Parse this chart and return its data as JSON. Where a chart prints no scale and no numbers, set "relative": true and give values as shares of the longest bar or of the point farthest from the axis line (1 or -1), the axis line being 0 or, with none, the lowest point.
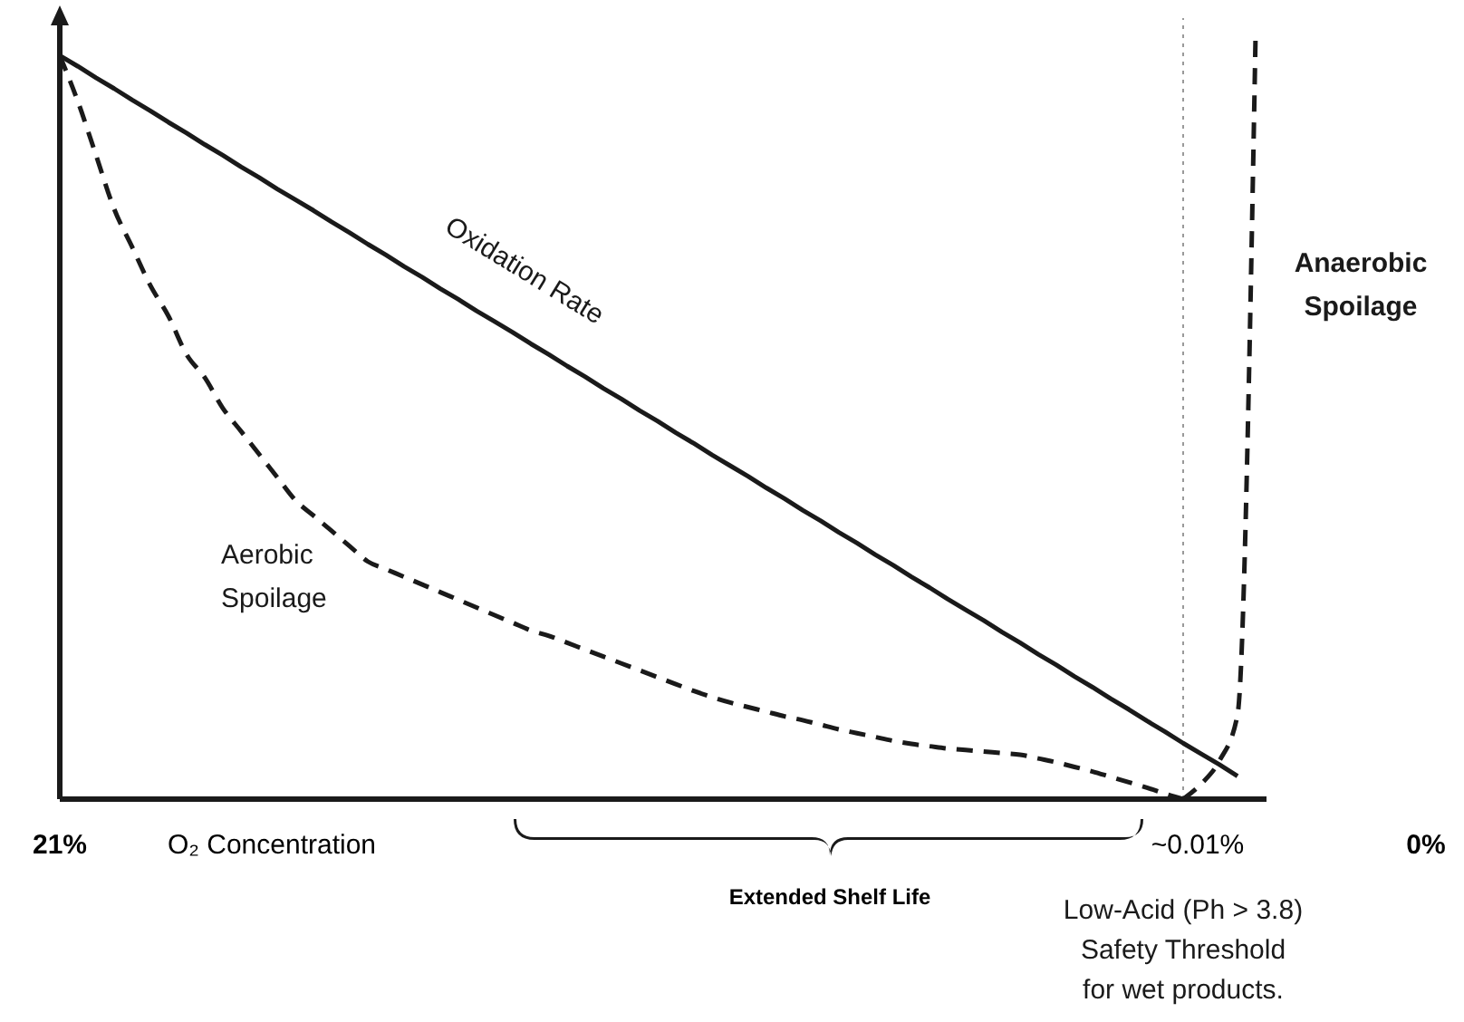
{
  "chart_data": {
    "type": "line",
    "relative": true,
    "xlabel": "O₂ Concentration",
    "categories": [
      null,
      null,
      null,
      null,
      null,
      null,
      null,
      null,
      null,
      null,
      null,
      null,
      null,
      null,
      null,
      null,
      null,
      null,
      null,
      null,
      null,
      null,
      null,
      null,
      null,
      null,
      null,
      null,
      null,
      null,
      null,
      null,
      null,
      null,
      null,
      null,
      null,
      null,
      null,
      null,
      null,
      null,
      null,
      null,
      null,
      null,
      null,
      null,
      null,
      null,
      null,
      null,
      null,
      null,
      null,
      null,
      null,
      null,
      null,
      null,
      null,
      null,
      null,
      null,
      null,
      null,
      null
    ],
    "series": [
      {
        "name": "Oxidation Rate",
        "color": "#1a1a1a",
        "line_style": "solid",
        "values": [
          0.97,
          0.956,
          0.941,
          0.927,
          0.912,
          0.898,
          0.883,
          0.869,
          0.854,
          0.84,
          0.825,
          0.811,
          0.796,
          0.782,
          0.768,
          0.753,
          0.739,
          0.724,
          0.71,
          0.695,
          0.681,
          0.666,
          0.652,
          0.637,
          0.623,
          0.609,
          0.594,
          0.58,
          0.565,
          0.551,
          0.536,
          0.522,
          0.507,
          0.493,
          0.478,
          0.464,
          0.449,
          0.435,
          0.421,
          0.406,
          0.392,
          0.377,
          0.363,
          0.348,
          0.334,
          0.319,
          0.305,
          0.29,
          0.276,
          0.261,
          0.247,
          0.233,
          0.218,
          0.204,
          0.189,
          0.175,
          0.16,
          0.146,
          0.131,
          0.117,
          0.102,
          0.088,
          0.073,
          0.059,
          0.045,
          0.03,
          null
        ]
      },
      {
        "name": "Aerobic Spoilage",
        "color": "#1a1a1a",
        "line_style": "dashed",
        "values": [
          0.97,
          0.91,
          0.84,
          0.77,
          0.72,
          0.67,
          0.63,
          0.58,
          0.55,
          0.51,
          0.48,
          0.45,
          0.42,
          0.39,
          0.37,
          0.35,
          0.33,
          0.31,
          0.3,
          0.29,
          0.28,
          0.27,
          0.26,
          0.25,
          0.24,
          0.23,
          0.22,
          0.213,
          0.204,
          0.195,
          0.186,
          0.177,
          0.168,
          0.159,
          0.15,
          0.141,
          0.133,
          0.126,
          0.12,
          0.114,
          0.108,
          0.103,
          0.097,
          0.091,
          0.086,
          0.081,
          0.076,
          0.072,
          0.069,
          0.066,
          0.064,
          0.062,
          0.06,
          0.058,
          0.053,
          0.048,
          0.042,
          0.036,
          0.029,
          0.022,
          0.015,
          0.007,
          0,
          null,
          null,
          null,
          null
        ]
      },
      {
        "name": "Anaerobic Spoilage",
        "color": "#1a1a1a",
        "line_style": "dashed",
        "values": [
          null,
          null,
          null,
          null,
          null,
          null,
          null,
          null,
          null,
          null,
          null,
          null,
          null,
          null,
          null,
          null,
          null,
          null,
          null,
          null,
          null,
          null,
          null,
          null,
          null,
          null,
          null,
          null,
          null,
          null,
          null,
          null,
          null,
          null,
          null,
          null,
          null,
          null,
          null,
          null,
          null,
          null,
          null,
          null,
          null,
          null,
          null,
          null,
          null,
          null,
          null,
          null,
          null,
          null,
          null,
          null,
          null,
          null,
          null,
          null,
          null,
          null,
          0,
          0.02,
          0.05,
          0.11,
          1
        ]
      }
    ],
    "ref_lines": [
      {
        "axis": "x",
        "label": "Low-Acid (Ph > 3.8) Safety Threshold for wet products.",
        "color": "#999999",
        "line_style": "dotted"
      }
    ],
    "annotations": [
      "21%",
      "~0.01%",
      "0%",
      "Extended Shelf Life"
    ],
    "legend": false,
    "grid": false
  }
}
